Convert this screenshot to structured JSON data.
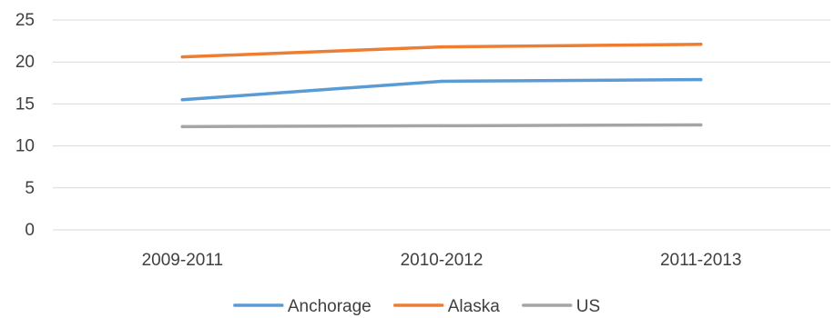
{
  "chart_data": {
    "type": "line",
    "categories": [
      "2009-2011",
      "2010-2012",
      "2011-2013"
    ],
    "series": [
      {
        "name": "Anchorage",
        "values": [
          15.5,
          17.7,
          17.9
        ],
        "color": "#5B9BD5"
      },
      {
        "name": "Alaska",
        "values": [
          20.6,
          21.8,
          22.1
        ],
        "color": "#ED7D31"
      },
      {
        "name": "US",
        "values": [
          12.3,
          12.4,
          12.5
        ],
        "color": "#A5A5A5"
      }
    ],
    "yticks": [
      "0",
      "5",
      "10",
      "15",
      "20",
      "25"
    ],
    "ylim": [
      0,
      25
    ],
    "grid": true,
    "legend_position": "bottom"
  }
}
